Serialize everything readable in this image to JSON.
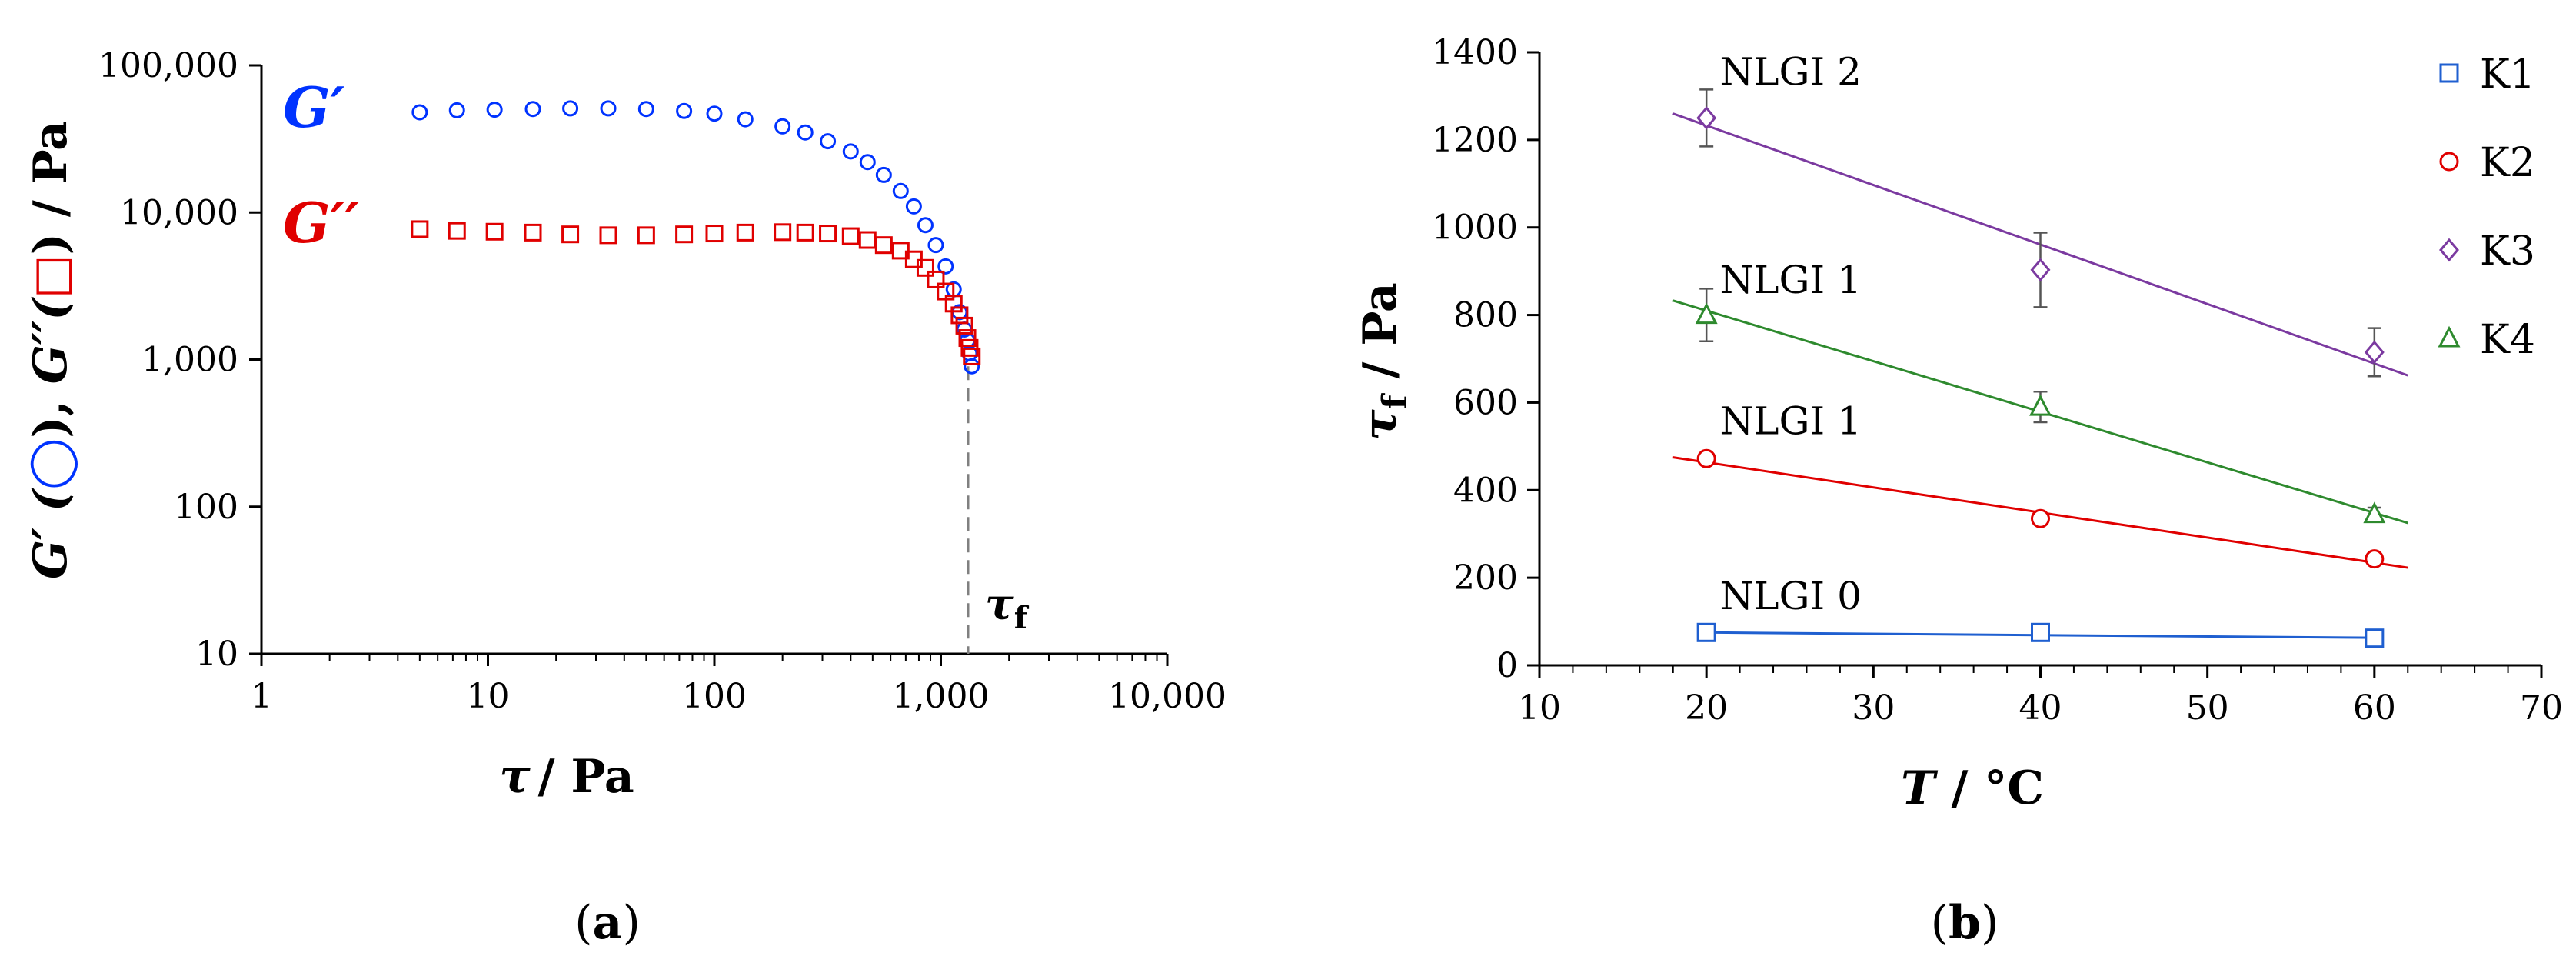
{
  "chart_data": [
    {
      "type": "scatter",
      "panel": "(a)",
      "xscale": "log",
      "yscale": "log",
      "xlim": [
        1,
        10000
      ],
      "ylim": [
        10,
        100000
      ],
      "xticks": [
        "1",
        "10",
        "100",
        "1,000",
        "10,000"
      ],
      "yticks": [
        "10",
        "100",
        "1,000",
        "10,000",
        "100,000"
      ],
      "xlabel": {
        "sym": "τ",
        "rest": "/ Pa"
      },
      "ylabel": {
        "g1": "G′ (",
        "g2": "), ",
        "g3": "G′′(",
        "g4": ") / Pa"
      },
      "series": [
        {
          "name": "G′",
          "marker": "circle",
          "color": "#0033ff",
          "x": [
            5,
            7.3,
            10.7,
            15.8,
            23.1,
            34,
            50,
            73.5,
            100,
            137,
            200,
            252,
            317,
            400,
            475,
            560,
            665,
            760,
            855,
            950,
            1050,
            1140,
            1210,
            1270,
            1310,
            1340,
            1370
          ],
          "y": [
            48000,
            49500,
            50000,
            50500,
            51000,
            51000,
            50500,
            49000,
            47000,
            43000,
            38500,
            35000,
            30500,
            26000,
            22000,
            18000,
            14000,
            11000,
            8200,
            6000,
            4300,
            3000,
            2100,
            1600,
            1350,
            1100,
            900
          ]
        },
        {
          "name": "G′′",
          "marker": "square",
          "color": "#e00000",
          "x": [
            5,
            7.3,
            10.7,
            15.8,
            23.1,
            34,
            50,
            73.5,
            100,
            137,
            200,
            252,
            317,
            400,
            475,
            560,
            665,
            760,
            855,
            950,
            1050,
            1140,
            1210,
            1270,
            1310,
            1340,
            1370
          ],
          "y": [
            7700,
            7500,
            7400,
            7300,
            7100,
            7000,
            7000,
            7100,
            7200,
            7300,
            7350,
            7300,
            7200,
            6900,
            6500,
            6000,
            5500,
            4800,
            4200,
            3500,
            2900,
            2400,
            2000,
            1700,
            1400,
            1200,
            1050
          ]
        }
      ],
      "annotations": {
        "g1_label": "G′",
        "g2_label": "G′′",
        "tau_sym": "τ",
        "tau_sub": "f",
        "tau_f_value": 1320
      },
      "caption": {
        "open": "(",
        "letter": "a",
        "close": ")"
      }
    },
    {
      "type": "scatter",
      "panel": "(b)",
      "xlim": [
        10,
        70
      ],
      "ylim": [
        0,
        1400
      ],
      "xticks": [
        "10",
        "20",
        "30",
        "40",
        "50",
        "60",
        "70"
      ],
      "yticks": [
        "0",
        "200",
        "400",
        "600",
        "800",
        "1000",
        "1200",
        "1400"
      ],
      "xlabel": {
        "sym": "T",
        "rest": " / °C"
      },
      "ylabel": {
        "sym": "τ",
        "sub": "f",
        "rest": " / Pa"
      },
      "series": [
        {
          "name": "K1",
          "marker": "square",
          "color": "#1f5fd0",
          "x": [
            20,
            40,
            60
          ],
          "y": [
            75,
            75,
            62
          ],
          "err": [
            10,
            10,
            10
          ],
          "fit": {
            "x": [
              20,
              60
            ],
            "y": [
              75,
              63
            ]
          }
        },
        {
          "name": "K2",
          "marker": "circle",
          "color": "#e00000",
          "x": [
            20,
            40,
            60
          ],
          "y": [
            472,
            335,
            243
          ],
          "err": [
            12,
            12,
            12
          ],
          "fit": {
            "x": [
              18,
              62
            ],
            "y": [
              475,
              223
            ]
          }
        },
        {
          "name": "K3",
          "marker": "diamond",
          "color": "#7b3aa0",
          "x": [
            20,
            40,
            60
          ],
          "y": [
            1250,
            903,
            715
          ],
          "err": [
            65,
            85,
            55
          ],
          "fit": {
            "x": [
              18,
              62
            ],
            "y": [
              1260,
              662
            ]
          }
        },
        {
          "name": "K4",
          "marker": "triangle",
          "color": "#2e8a2e",
          "x": [
            20,
            40,
            60
          ],
          "y": [
            800,
            590,
            345
          ],
          "err": [
            60,
            35,
            15
          ],
          "fit": {
            "x": [
              18,
              62
            ],
            "y": [
              833,
              325
            ]
          }
        }
      ],
      "annotations": [
        {
          "text": "NLGI 2",
          "x": 20.8,
          "y": 1325
        },
        {
          "text": "NLGI 1",
          "x": 20.8,
          "y": 850
        },
        {
          "text": "NLGI 1",
          "x": 20.8,
          "y": 528
        },
        {
          "text": "NLGI 0",
          "x": 20.8,
          "y": 128
        }
      ],
      "caption": {
        "open": "(",
        "letter": "b",
        "close": ")"
      }
    }
  ]
}
